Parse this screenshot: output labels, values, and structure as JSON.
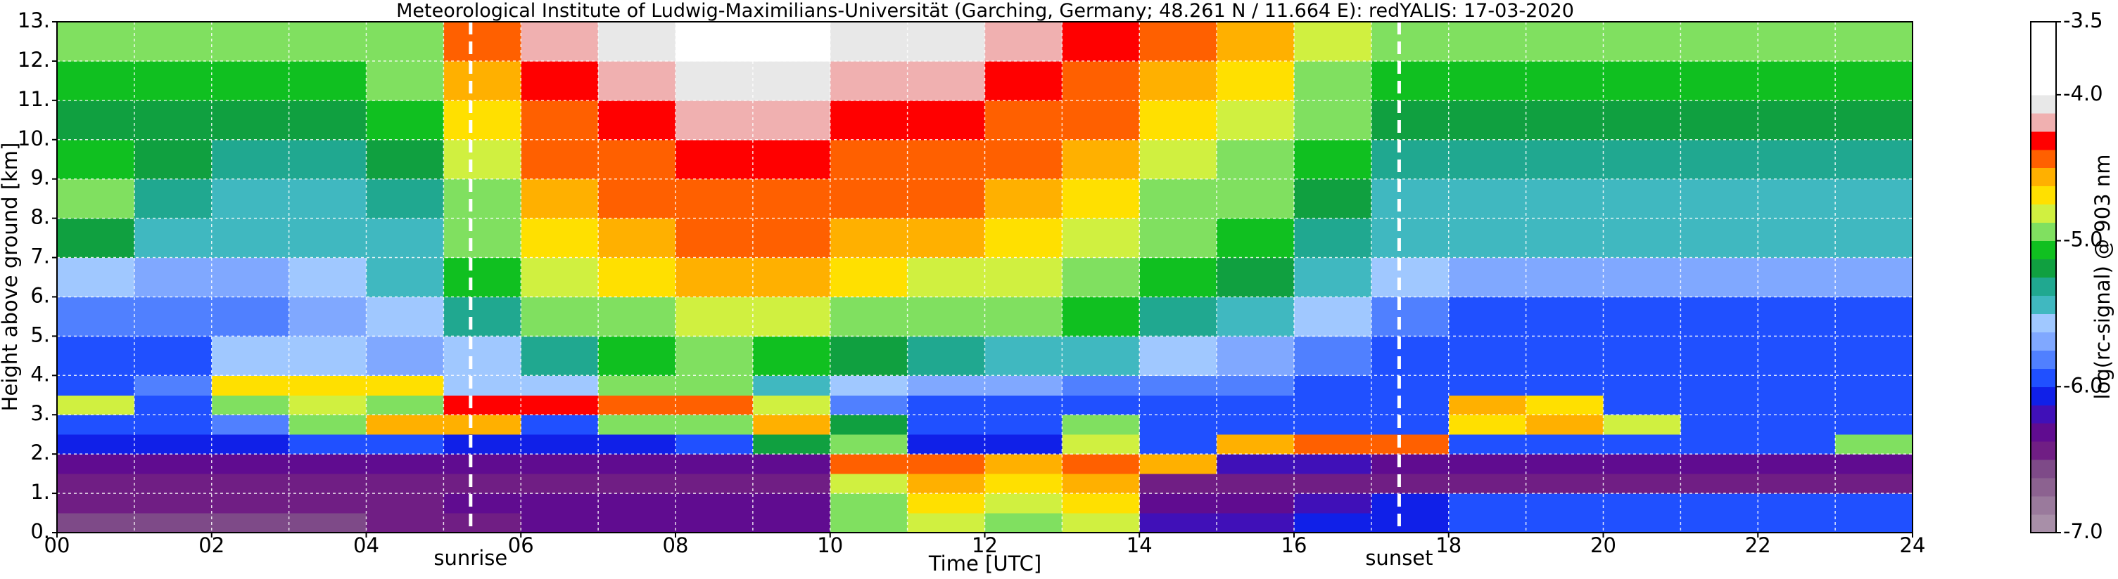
{
  "chart_data": {
    "type": "heatmap",
    "title": "Meteorological Institute of Ludwig-Maximilians-Universität (Garching, Germany; 48.261 N / 11.664 E):    redYALIS: 17-03-2020",
    "xlabel": "Time [UTC]",
    "ylabel": "Height above ground [km]",
    "colorbar_label": "log(rc-signal) @ 903 nm",
    "xlim": [
      0,
      24
    ],
    "ylim": [
      0,
      13
    ],
    "xticks": [
      {
        "value": 0,
        "label": "00"
      },
      {
        "value": 2,
        "label": "02"
      },
      {
        "value": 4,
        "label": "04"
      },
      {
        "value": 6,
        "label": "06"
      },
      {
        "value": 8,
        "label": "08"
      },
      10,
      12,
      14,
      16,
      18,
      20,
      22,
      24
    ],
    "xminorticks": [
      1,
      3,
      5,
      7,
      9,
      11,
      13,
      15,
      17,
      19,
      21,
      23
    ],
    "yticks": [
      {
        "value": 0,
        "label": "0."
      },
      {
        "value": 1,
        "label": "1."
      },
      {
        "value": 2,
        "label": "2."
      },
      {
        "value": 3,
        "label": "3."
      },
      {
        "value": 4,
        "label": "4."
      },
      {
        "value": 5,
        "label": "5."
      },
      {
        "value": 6,
        "label": "6."
      },
      {
        "value": 7,
        "label": "7."
      },
      {
        "value": 8,
        "label": "8."
      },
      {
        "value": 9,
        "label": "9."
      },
      {
        "value": 10,
        "label": "10."
      },
      {
        "value": 11,
        "label": "11."
      },
      {
        "value": 12,
        "label": "12."
      },
      {
        "value": 13,
        "label": "13."
      }
    ],
    "grid": true,
    "clim": [
      -7.0,
      -3.5
    ],
    "cticks": [
      {
        "value": -3.5,
        "label": "-3.5"
      },
      {
        "value": -4,
        "label": "-4.0"
      },
      {
        "value": -5,
        "label": "-5.0"
      },
      {
        "value": -6,
        "label": "-6.0"
      },
      {
        "value": -7,
        "label": "-7.0"
      }
    ],
    "colorscale": [
      "#a88fa8",
      "#9a7a9c",
      "#8c6290",
      "#7e4a88",
      "#701e84",
      "#600c90",
      "#4010b8",
      "#1020e8",
      "#2050ff",
      "#5080ff",
      "#80a8ff",
      "#a0c8ff",
      "#40b8c0",
      "#20a890",
      "#10a040",
      "#10c020",
      "#80e060",
      "#d0f040",
      "#ffe000",
      "#ffb000",
      "#ff6000",
      "#ff0000",
      "#f0b0b0",
      "#e8e8e8",
      "#ffffff",
      "#ffffff",
      "#ffffff",
      "#ffffff"
    ],
    "events": [
      {
        "label": "sunrise",
        "x": 5.35
      },
      {
        "label": "sunset",
        "x": 17.36
      }
    ],
    "xbins": [
      0,
      1,
      2,
      3,
      4,
      5,
      6,
      7,
      8,
      9,
      10,
      11,
      12,
      13,
      14,
      15,
      16,
      17,
      18,
      19,
      20,
      21,
      22,
      23,
      24
    ],
    "ybins": [
      0,
      0.5,
      1,
      1.5,
      2,
      2.5,
      3,
      3.5,
      4,
      5,
      6,
      7,
      8,
      9,
      10,
      11,
      12,
      13
    ],
    "z": [
      [
        -6.6,
        -6.6,
        -6.6,
        -6.6,
        -6.5,
        -6.4,
        -6.3,
        -6.3,
        -6.3,
        -6.3,
        -5.0,
        -4.8,
        -4.9,
        -4.8,
        -6.2,
        -6.2,
        -6.1,
        -6.1,
        -6.0,
        -6.0,
        -6.0,
        -6.0,
        -6.0,
        -6.0
      ],
      [
        -6.5,
        -6.5,
        -6.5,
        -6.5,
        -6.4,
        -6.3,
        -6.3,
        -6.3,
        -6.3,
        -6.3,
        -4.9,
        -4.7,
        -4.8,
        -4.7,
        -6.3,
        -6.3,
        -6.2,
        -6.1,
        -6.0,
        -6.0,
        -6.0,
        -6.0,
        -6.0,
        -6.0
      ],
      [
        -6.5,
        -6.5,
        -6.5,
        -6.5,
        -6.4,
        -6.4,
        -6.4,
        -6.4,
        -6.4,
        -6.4,
        -4.8,
        -4.6,
        -4.7,
        -4.6,
        -6.4,
        -6.4,
        -6.4,
        -6.4,
        -6.4,
        -6.4,
        -6.4,
        -6.4,
        -6.4,
        -6.4
      ],
      [
        -6.3,
        -6.3,
        -6.3,
        -6.3,
        -6.3,
        -6.3,
        -6.3,
        -6.3,
        -6.3,
        -6.3,
        -4.5,
        -4.4,
        -4.6,
        -4.5,
        -4.6,
        -6.2,
        -6.2,
        -6.3,
        -6.3,
        -6.3,
        -6.3,
        -6.3,
        -6.3,
        -6.3
      ],
      [
        -6.1,
        -6.1,
        -6.1,
        -6.0,
        -6.0,
        -6.1,
        -6.1,
        -6.1,
        -6.0,
        -5.2,
        -5.0,
        -6.1,
        -6.1,
        -4.8,
        -6.0,
        -4.6,
        -4.5,
        -4.5,
        -6.0,
        -6.0,
        -6.0,
        -6.0,
        -6.0,
        -4.9
      ],
      [
        -6.0,
        -6.0,
        -5.8,
        -4.9,
        -4.6,
        -4.6,
        -6.0,
        -4.9,
        -5.0,
        -4.6,
        -5.2,
        -6.0,
        -6.0,
        -5.0,
        -6.0,
        -6.0,
        -6.0,
        -6.0,
        -4.7,
        -4.6,
        -4.8,
        -6.0,
        -6.0,
        -6.0
      ],
      [
        -4.8,
        -6.0,
        -5.0,
        -4.8,
        -5.0,
        -4.3,
        -4.3,
        -4.5,
        -4.4,
        -4.8,
        -5.8,
        -5.9,
        -5.9,
        -5.9,
        -5.9,
        -5.9,
        -5.9,
        -5.9,
        -4.6,
        -4.7,
        -5.9,
        -5.9,
        -5.9,
        -5.9
      ],
      [
        -6.0,
        -5.8,
        -4.7,
        -4.7,
        -4.7,
        -5.6,
        -5.6,
        -5.0,
        -4.9,
        -5.4,
        -5.6,
        -5.7,
        -5.7,
        -5.8,
        -5.8,
        -5.8,
        -5.9,
        -5.9,
        -5.9,
        -5.9,
        -5.9,
        -5.9,
        -5.9,
        -5.9
      ],
      [
        -5.9,
        -5.9,
        -5.6,
        -5.6,
        -5.7,
        -5.6,
        -5.3,
        -5.1,
        -5.0,
        -5.1,
        -5.2,
        -5.3,
        -5.4,
        -5.5,
        -5.6,
        -5.7,
        -5.8,
        -5.9,
        -6.0,
        -6.0,
        -6.0,
        -6.0,
        -6.0,
        -6.0
      ],
      [
        -5.8,
        -5.8,
        -5.8,
        -5.7,
        -5.6,
        -5.3,
        -5.0,
        -4.9,
        -4.8,
        -4.8,
        -4.9,
        -5.0,
        -5.0,
        -5.1,
        -5.3,
        -5.4,
        -5.6,
        -5.8,
        -5.9,
        -5.9,
        -5.9,
        -5.9,
        -5.9,
        -5.9
      ],
      [
        -5.6,
        -5.7,
        -5.7,
        -5.6,
        -5.5,
        -5.1,
        -4.8,
        -4.7,
        -4.6,
        -4.6,
        -4.7,
        -4.8,
        -4.8,
        -4.9,
        -5.1,
        -5.2,
        -5.4,
        -5.6,
        -5.7,
        -5.7,
        -5.7,
        -5.7,
        -5.7,
        -5.7
      ],
      [
        -5.2,
        -5.4,
        -5.5,
        -5.5,
        -5.4,
        -5.0,
        -4.7,
        -4.6,
        -4.5,
        -4.5,
        -4.6,
        -4.6,
        -4.7,
        -4.8,
        -5.0,
        -5.1,
        -5.3,
        -5.5,
        -5.5,
        -5.5,
        -5.5,
        -5.5,
        -5.5,
        -5.5
      ],
      [
        -5.0,
        -5.3,
        -5.4,
        -5.4,
        -5.3,
        -4.9,
        -4.6,
        -4.5,
        -4.4,
        -4.4,
        -4.5,
        -4.5,
        -4.6,
        -4.7,
        -4.9,
        -5.0,
        -5.2,
        -5.4,
        -5.4,
        -5.4,
        -5.4,
        -5.4,
        -5.4,
        -5.4
      ],
      [
        -5.1,
        -5.2,
        -5.3,
        -5.3,
        -5.2,
        -4.8,
        -4.5,
        -4.4,
        -4.3,
        -4.3,
        -4.4,
        -4.4,
        -4.5,
        -4.6,
        -4.8,
        -4.9,
        -5.1,
        -5.3,
        -5.3,
        -5.3,
        -5.3,
        -5.3,
        -5.3,
        -5.3
      ],
      [
        -5.2,
        -5.2,
        -5.2,
        -5.2,
        -5.1,
        -4.7,
        -4.4,
        -4.3,
        -4.2,
        -4.2,
        -4.3,
        -4.3,
        -4.4,
        -4.5,
        -4.7,
        -4.8,
        -5.0,
        -5.2,
        -5.2,
        -5.2,
        -5.2,
        -5.2,
        -5.2,
        -5.2
      ],
      [
        -5.1,
        -5.1,
        -5.1,
        -5.1,
        -5.0,
        -4.6,
        -4.3,
        -4.2,
        -4.1,
        -4.1,
        -4.2,
        -4.2,
        -4.3,
        -4.4,
        -4.6,
        -4.7,
        -4.9,
        -5.1,
        -5.1,
        -5.1,
        -5.1,
        -5.1,
        -5.1,
        -5.1
      ],
      [
        -5.0,
        -5.0,
        -5.0,
        -5.0,
        -4.9,
        -4.5,
        -4.2,
        -4.1,
        -4.0,
        -4.0,
        -4.1,
        -4.1,
        -4.2,
        -4.3,
        -4.5,
        -4.6,
        -4.8,
        -5.0,
        -5.0,
        -5.0,
        -5.0,
        -5.0,
        -5.0,
        -5.0
      ]
    ]
  }
}
